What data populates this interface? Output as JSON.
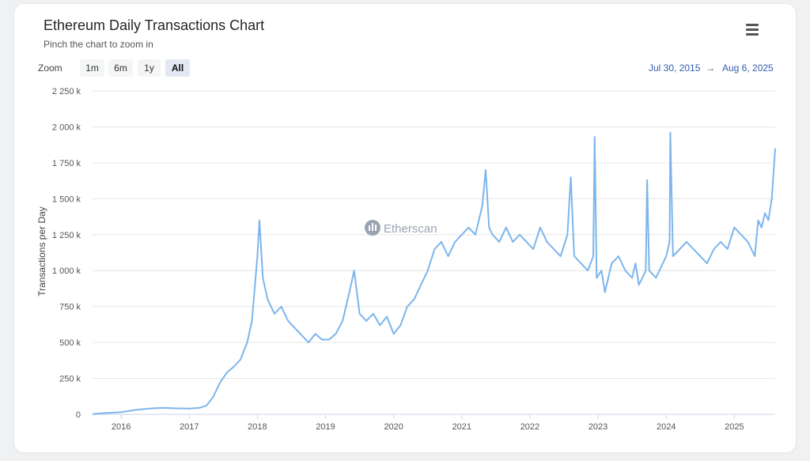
{
  "header": {
    "title": "Ethereum Daily Transactions Chart",
    "subtitle": "Pinch the chart to zoom in",
    "menu_icon": "hamburger-menu-icon"
  },
  "zoom": {
    "label": "Zoom",
    "buttons": [
      "1m",
      "6m",
      "1y",
      "All"
    ],
    "active": "All"
  },
  "range": {
    "from": "Jul 30, 2015",
    "arrow": "→",
    "to": "Aug 6, 2025"
  },
  "watermark": {
    "text": "Etherscan",
    "icon": "etherscan-logo-icon"
  },
  "colors": {
    "series": "#7cb5ec",
    "grid": "#e6e6e6",
    "accent": "#335cad"
  },
  "chart_data": {
    "type": "line",
    "title": "Ethereum Daily Transactions Chart",
    "xlabel": "",
    "ylabel": "Transactions per Day",
    "xlim": [
      2015.58,
      2025.6
    ],
    "ylim": [
      0,
      2250000
    ],
    "y_ticks": [
      0,
      250000,
      500000,
      750000,
      1000000,
      1250000,
      1500000,
      1750000,
      2000000,
      2250000
    ],
    "y_tick_labels": [
      "0",
      "250 k",
      "500 k",
      "750 k",
      "1 000 k",
      "1 250 k",
      "1 500 k",
      "1 750 k",
      "2 000 k",
      "2 250 k"
    ],
    "x_ticks": [
      2016,
      2017,
      2018,
      2019,
      2020,
      2021,
      2022,
      2023,
      2024,
      2025
    ],
    "x_tick_labels": [
      "2016",
      "2017",
      "2018",
      "2019",
      "2020",
      "2021",
      "2022",
      "2023",
      "2024",
      "2025"
    ],
    "grid": true,
    "legend": "none",
    "series": [
      {
        "x": [
          2015.58,
          2015.75,
          2016.0,
          2016.2,
          2016.4,
          2016.6,
          2016.8,
          2017.0,
          2017.15,
          2017.25,
          2017.35,
          2017.45,
          2017.55,
          2017.65,
          2017.75,
          2017.85,
          2017.92,
          2018.0,
          2018.03,
          2018.08,
          2018.15,
          2018.25,
          2018.35,
          2018.45,
          2018.55,
          2018.65,
          2018.75,
          2018.85,
          2018.95,
          2019.05,
          2019.15,
          2019.25,
          2019.35,
          2019.42,
          2019.5,
          2019.6,
          2019.7,
          2019.8,
          2019.9,
          2020.0,
          2020.1,
          2020.2,
          2020.3,
          2020.4,
          2020.5,
          2020.6,
          2020.7,
          2020.8,
          2020.9,
          2021.0,
          2021.1,
          2021.2,
          2021.3,
          2021.35,
          2021.4,
          2021.45,
          2021.55,
          2021.65,
          2021.75,
          2021.85,
          2021.95,
          2022.05,
          2022.15,
          2022.25,
          2022.35,
          2022.45,
          2022.55,
          2022.6,
          2022.65,
          2022.75,
          2022.85,
          2022.93,
          2022.95,
          2022.98,
          2023.05,
          2023.1,
          2023.2,
          2023.3,
          2023.4,
          2023.5,
          2023.55,
          2023.6,
          2023.7,
          2023.72,
          2023.75,
          2023.85,
          2023.95,
          2024.0,
          2024.05,
          2024.06,
          2024.1,
          2024.2,
          2024.3,
          2024.4,
          2024.5,
          2024.6,
          2024.7,
          2024.8,
          2024.9,
          2025.0,
          2025.1,
          2025.2,
          2025.3,
          2025.35,
          2025.4,
          2025.45,
          2025.5,
          2025.55,
          2025.6
        ],
        "values": [
          2000,
          8000,
          15000,
          30000,
          40000,
          45000,
          42000,
          40000,
          45000,
          60000,
          120000,
          220000,
          290000,
          330000,
          380000,
          500000,
          650000,
          1100000,
          1350000,
          950000,
          800000,
          700000,
          750000,
          650000,
          600000,
          550000,
          500000,
          560000,
          520000,
          520000,
          560000,
          650000,
          850000,
          1000000,
          700000,
          650000,
          700000,
          620000,
          680000,
          560000,
          620000,
          750000,
          800000,
          900000,
          1000000,
          1150000,
          1200000,
          1100000,
          1200000,
          1250000,
          1300000,
          1250000,
          1450000,
          1700000,
          1300000,
          1250000,
          1200000,
          1300000,
          1200000,
          1250000,
          1200000,
          1150000,
          1300000,
          1200000,
          1150000,
          1100000,
          1250000,
          1650000,
          1100000,
          1050000,
          1000000,
          1100000,
          1930000,
          950000,
          1000000,
          850000,
          1050000,
          1100000,
          1000000,
          950000,
          1050000,
          900000,
          1000000,
          1630000,
          1000000,
          950000,
          1050000,
          1100000,
          1200000,
          1960000,
          1100000,
          1150000,
          1200000,
          1150000,
          1100000,
          1050000,
          1150000,
          1200000,
          1150000,
          1300000,
          1250000,
          1200000,
          1100000,
          1350000,
          1300000,
          1400000,
          1350000,
          1500000,
          1850000
        ]
      }
    ]
  }
}
